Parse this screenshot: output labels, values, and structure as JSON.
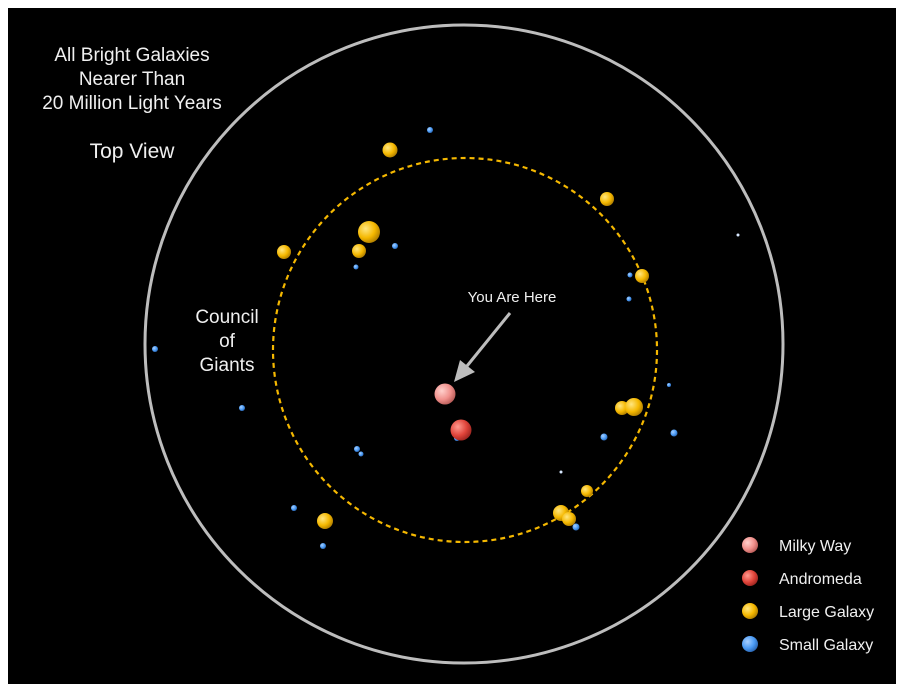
{
  "title_lines": [
    "All Bright Galaxies",
    "Nearer Than",
    "20 Million Light Years"
  ],
  "view_label": "Top View",
  "council_lines": [
    "Council",
    "of",
    "Giants"
  ],
  "here_label": "You Are Here",
  "legend": [
    {
      "label": "Milky Way",
      "color": "#f0908c"
    },
    {
      "label": "Andromeda",
      "color": "#e0443a"
    },
    {
      "label": "Large Galaxy",
      "color": "#f5b800"
    },
    {
      "label": "Small Galaxy",
      "color": "#4b9bf5"
    }
  ],
  "colors": {
    "outer_circle": "#bdbdbd",
    "council_ring": "#f5b800",
    "arrow": "#bdbdbd",
    "background": "#000000"
  }
}
